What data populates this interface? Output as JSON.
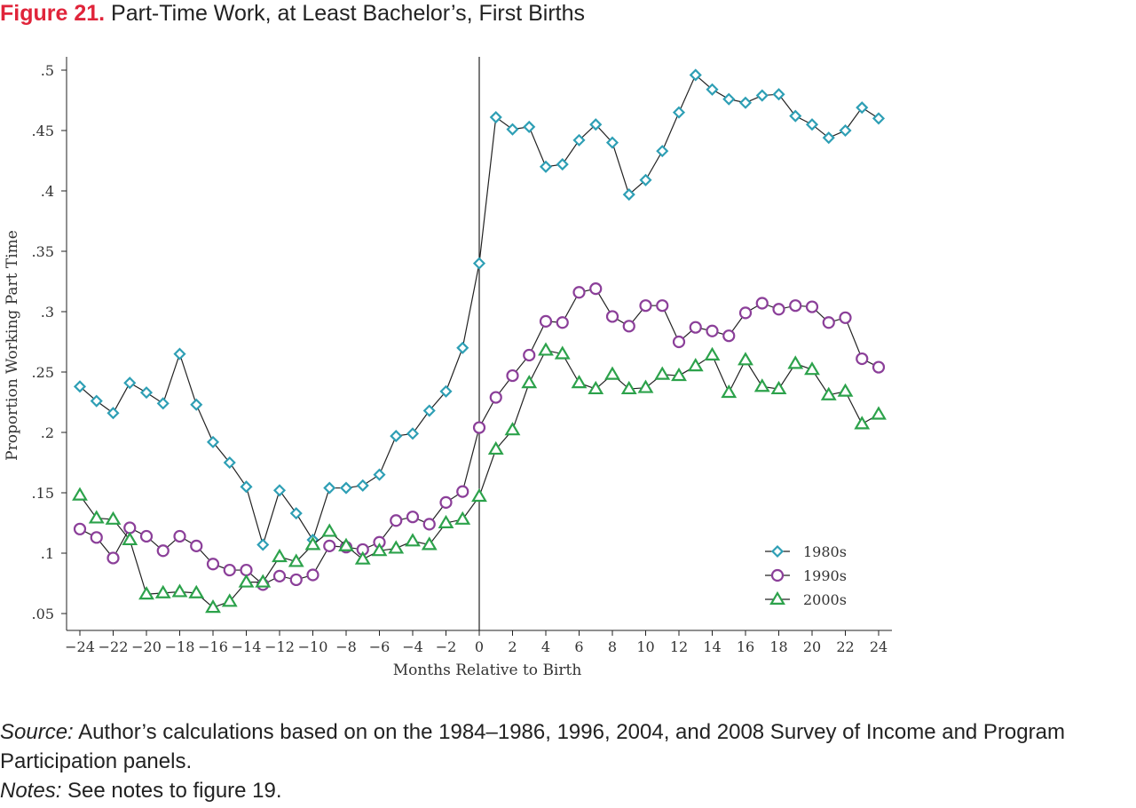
{
  "figure": {
    "number": "Figure 21.",
    "title": "Part-Time Work, at Least Bachelor’s, First Births"
  },
  "source": {
    "label": "Source:",
    "text": " Author’s calculations based on on the 1984–1986, 1996, 2004, and 2008 Survey of Income and Program Participation panels."
  },
  "notes": {
    "label": "Notes:",
    "text": " See notes to figure 19."
  },
  "chart_data": {
    "type": "line",
    "xlabel": "Months Relative to Birth",
    "ylabel": "Proportion Working Part Time",
    "xlim": [
      -24,
      24
    ],
    "ylim": [
      0.05,
      0.5
    ],
    "x_ticks": [
      -24,
      -22,
      -20,
      -18,
      -16,
      -14,
      -12,
      -10,
      -8,
      -6,
      -4,
      -2,
      0,
      2,
      4,
      6,
      8,
      10,
      12,
      14,
      16,
      18,
      20,
      22,
      24
    ],
    "x_tick_labels": [
      "−24",
      "−22",
      "−20",
      "−18",
      "−16",
      "−14",
      "−12",
      "−10",
      "−8",
      "−6",
      "−4",
      "−2",
      "0",
      "2",
      "4",
      "6",
      "8",
      "10",
      "12",
      "14",
      "16",
      "18",
      "20",
      "22",
      "24"
    ],
    "y_ticks": [
      0.05,
      0.1,
      0.15,
      0.2,
      0.25,
      0.3,
      0.35,
      0.4,
      0.45,
      0.5
    ],
    "y_tick_labels": [
      ".05",
      ".1",
      ".15",
      ".2",
      ".25",
      ".3",
      ".35",
      ".4",
      ".45",
      ".5"
    ],
    "reference_line_x": 0,
    "grid": false,
    "legend_position": "bottom-right",
    "x": [
      -24,
      -23,
      -22,
      -21,
      -20,
      -19,
      -18,
      -17,
      -16,
      -15,
      -14,
      -13,
      -12,
      -11,
      -10,
      -9,
      -8,
      -7,
      -6,
      -5,
      -4,
      -3,
      -2,
      -1,
      0,
      1,
      2,
      3,
      4,
      5,
      6,
      7,
      8,
      9,
      10,
      11,
      12,
      13,
      14,
      15,
      16,
      17,
      18,
      19,
      20,
      21,
      22,
      23,
      24
    ],
    "series": [
      {
        "name": "1980s",
        "marker": "diamond",
        "color": "#2e9fb5",
        "values": [
          0.238,
          0.226,
          0.216,
          0.241,
          0.233,
          0.224,
          0.265,
          0.223,
          0.192,
          0.175,
          0.155,
          0.107,
          0.152,
          0.133,
          0.111,
          0.154,
          0.154,
          0.156,
          0.165,
          0.197,
          0.199,
          0.218,
          0.234,
          0.27,
          0.34,
          0.461,
          0.451,
          0.453,
          0.42,
          0.422,
          0.442,
          0.455,
          0.44,
          0.397,
          0.409,
          0.433,
          0.465,
          0.496,
          0.484,
          0.476,
          0.473,
          0.479,
          0.48,
          0.462,
          0.455,
          0.444,
          0.45,
          0.469,
          0.46
        ]
      },
      {
        "name": "1990s",
        "marker": "circle",
        "color": "#8b3f99",
        "values": [
          0.12,
          0.113,
          0.096,
          0.121,
          0.114,
          0.102,
          0.114,
          0.106,
          0.091,
          0.086,
          0.086,
          0.074,
          0.081,
          0.078,
          0.082,
          0.106,
          0.105,
          0.103,
          0.109,
          0.127,
          0.13,
          0.124,
          0.142,
          0.151,
          0.204,
          0.229,
          0.247,
          0.264,
          0.292,
          0.291,
          0.316,
          0.319,
          0.296,
          0.288,
          0.305,
          0.305,
          0.275,
          0.287,
          0.284,
          0.28,
          0.299,
          0.307,
          0.302,
          0.305,
          0.304,
          0.291,
          0.295,
          0.261,
          0.254
        ]
      },
      {
        "name": "2000s",
        "marker": "triangle",
        "color": "#2ca24b",
        "values": [
          0.148,
          0.129,
          0.128,
          0.111,
          0.066,
          0.067,
          0.068,
          0.067,
          0.055,
          0.06,
          0.076,
          0.076,
          0.097,
          0.093,
          0.107,
          0.118,
          0.106,
          0.095,
          0.102,
          0.104,
          0.11,
          0.107,
          0.125,
          0.128,
          0.147,
          0.186,
          0.202,
          0.241,
          0.268,
          0.265,
          0.241,
          0.236,
          0.248,
          0.236,
          0.237,
          0.248,
          0.247,
          0.255,
          0.264,
          0.233,
          0.26,
          0.238,
          0.236,
          0.257,
          0.252,
          0.231,
          0.234,
          0.207,
          0.215
        ]
      }
    ]
  }
}
